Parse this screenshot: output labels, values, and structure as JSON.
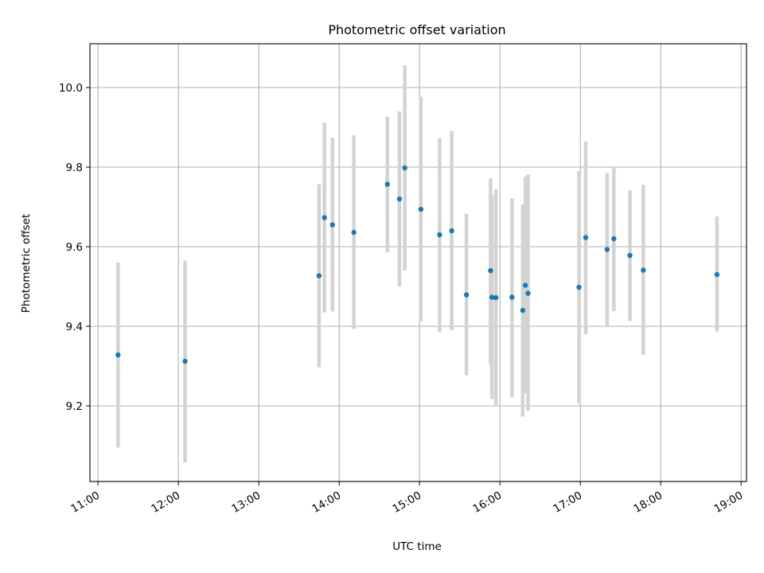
{
  "chart_data": {
    "type": "scatter",
    "title": "Photometric offset variation",
    "xlabel": "UTC time",
    "ylabel": "Photometric offset",
    "xlim": [
      "10:54",
      "19:04"
    ],
    "ylim": [
      9.01,
      10.11
    ],
    "x_ticks": [
      "11:00",
      "12:00",
      "13:00",
      "14:00",
      "15:00",
      "16:00",
      "17:00",
      "18:00",
      "19:00"
    ],
    "y_ticks": [
      "9.2",
      "9.4",
      "9.6",
      "9.8",
      "10.0"
    ],
    "grid": true,
    "points": [
      {
        "x": "11:15",
        "y": 9.328,
        "lo": 9.095,
        "hi": 9.56
      },
      {
        "x": "12:05",
        "y": 9.312,
        "lo": 9.058,
        "hi": 9.565
      },
      {
        "x": "13:45",
        "y": 9.527,
        "lo": 9.297,
        "hi": 9.757
      },
      {
        "x": "13:49",
        "y": 9.673,
        "lo": 9.435,
        "hi": 9.912
      },
      {
        "x": "13:55",
        "y": 9.655,
        "lo": 9.437,
        "hi": 9.874
      },
      {
        "x": "14:11",
        "y": 9.636,
        "lo": 9.393,
        "hi": 9.88
      },
      {
        "x": "14:36",
        "y": 9.757,
        "lo": 9.586,
        "hi": 9.927
      },
      {
        "x": "14:45",
        "y": 9.72,
        "lo": 9.5,
        "hi": 9.94
      },
      {
        "x": "14:49",
        "y": 9.798,
        "lo": 9.54,
        "hi": 10.056
      },
      {
        "x": "15:01",
        "y": 9.694,
        "lo": 9.412,
        "hi": 9.977
      },
      {
        "x": "15:15",
        "y": 9.63,
        "lo": 9.385,
        "hi": 9.873
      },
      {
        "x": "15:24",
        "y": 9.64,
        "lo": 9.39,
        "hi": 9.891
      },
      {
        "x": "15:35",
        "y": 9.479,
        "lo": 9.277,
        "hi": 9.683
      },
      {
        "x": "15:53",
        "y": 9.54,
        "lo": 9.305,
        "hi": 9.772
      },
      {
        "x": "15:54",
        "y": 9.473,
        "lo": 9.217,
        "hi": 9.73
      },
      {
        "x": "15:57",
        "y": 9.472,
        "lo": 9.2,
        "hi": 9.744
      },
      {
        "x": "16:09",
        "y": 9.473,
        "lo": 9.222,
        "hi": 9.722
      },
      {
        "x": "16:17",
        "y": 9.44,
        "lo": 9.173,
        "hi": 9.706
      },
      {
        "x": "16:19",
        "y": 9.503,
        "lo": 9.231,
        "hi": 9.776
      },
      {
        "x": "16:21",
        "y": 9.483,
        "lo": 9.187,
        "hi": 9.782
      },
      {
        "x": "16:59",
        "y": 9.498,
        "lo": 9.207,
        "hi": 9.79
      },
      {
        "x": "17:04",
        "y": 9.623,
        "lo": 9.38,
        "hi": 9.864
      },
      {
        "x": "17:20",
        "y": 9.593,
        "lo": 9.4,
        "hi": 9.785
      },
      {
        "x": "17:25",
        "y": 9.62,
        "lo": 9.438,
        "hi": 9.8
      },
      {
        "x": "17:37",
        "y": 9.578,
        "lo": 9.413,
        "hi": 9.742
      },
      {
        "x": "17:47",
        "y": 9.541,
        "lo": 9.328,
        "hi": 9.755
      },
      {
        "x": "18:42",
        "y": 9.53,
        "lo": 9.387,
        "hi": 9.676
      }
    ],
    "colors": {
      "point": "#1f77b4",
      "errorbar": "#d3d3d3",
      "grid": "#b0b0b0"
    }
  }
}
